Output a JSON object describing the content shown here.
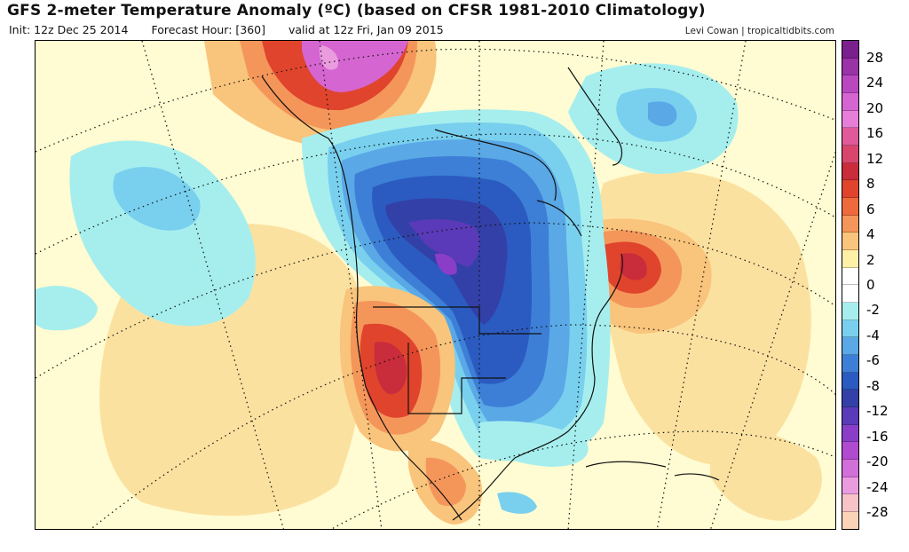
{
  "header": {
    "title": "GFS 2-meter Temperature Anomaly (ºC) (based on CFSR 1981-2010 Climatology)",
    "init": "Init: 12z Dec 25 2014",
    "forecast_hour": "Forecast Hour: [360]",
    "valid": "valid at 12z Fri, Jan 09 2015",
    "credit": "Levi Cowan | tropicaltidbits.com"
  },
  "colorbar": {
    "bins": [
      {
        "color": "#7a1f8e"
      },
      {
        "color": "#9a32a8"
      },
      {
        "color": "#b948c0"
      },
      {
        "color": "#d565d0"
      },
      {
        "color": "#e77fd9"
      },
      {
        "color": "#e05a9a"
      },
      {
        "color": "#d9466c"
      },
      {
        "color": "#c92c3a"
      },
      {
        "color": "#e0442d"
      },
      {
        "color": "#ee6a3c"
      },
      {
        "color": "#f4965a"
      },
      {
        "color": "#f9c47c"
      },
      {
        "color": "#fff0a8"
      },
      {
        "color": "#ffffff"
      },
      {
        "color": "#ffffff"
      },
      {
        "color": "#a6eeee"
      },
      {
        "color": "#79d0ee"
      },
      {
        "color": "#5aa8e6"
      },
      {
        "color": "#3d7fd6"
      },
      {
        "color": "#2b5bc0"
      },
      {
        "color": "#3340a8"
      },
      {
        "color": "#5a3ab8"
      },
      {
        "color": "#8a3ec8"
      },
      {
        "color": "#b04bd0"
      },
      {
        "color": "#d26fd8"
      },
      {
        "color": "#ea9cdf"
      },
      {
        "color": "#f7c3c6"
      },
      {
        "color": "#fbd3b6"
      }
    ],
    "labels": [
      "28",
      "24",
      "20",
      "16",
      "12",
      "8",
      "6",
      "4",
      "2",
      "0",
      "-2",
      "-4",
      "-6",
      "-8",
      "-12",
      "-16",
      "-20",
      "-24",
      "-28"
    ]
  },
  "map": {
    "palette": {
      "ocean_neutral": "#fffbd2",
      "warm_light": "#fbe1a0",
      "warm_mid": "#f4a560",
      "warm_strong": "#e0502d",
      "warm_extreme": "#c92c3a",
      "warm_magenta": "#d565d0",
      "cool_light": "#a6eeee",
      "cool_mid": "#79d0ee",
      "cool_strong": "#3d7fd6",
      "cool_deep": "#2b5bc0",
      "cool_extreme": "#5a3ab8"
    }
  }
}
